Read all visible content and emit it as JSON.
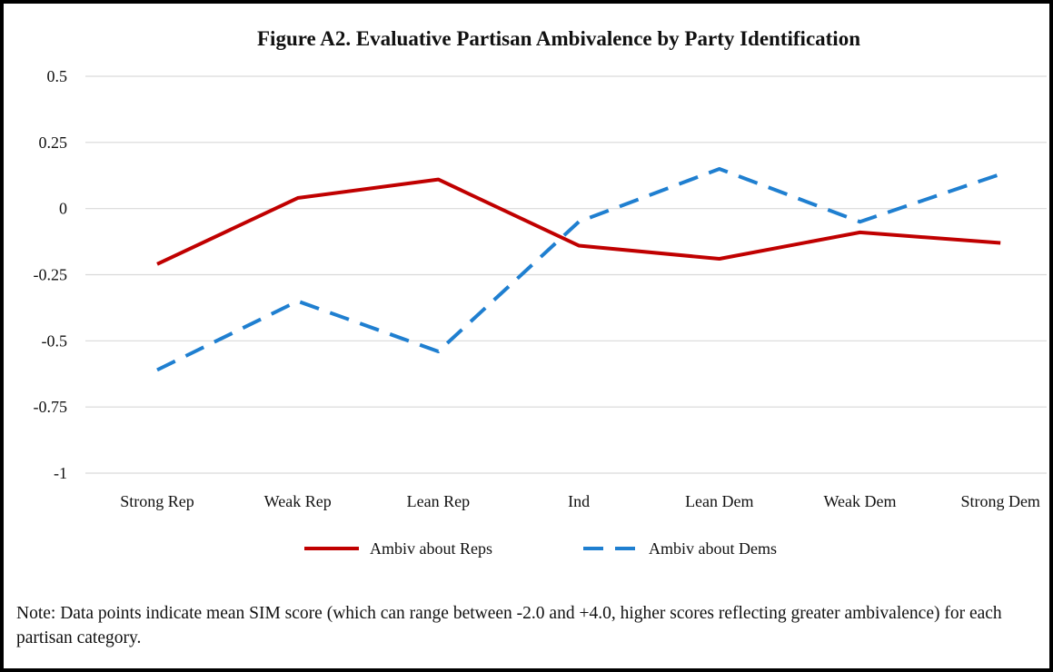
{
  "chart_data": {
    "type": "line",
    "title": "Figure A2. Evaluative Partisan Ambivalence by Party Identification",
    "categories": [
      "Strong Rep",
      "Weak Rep",
      "Lean Rep",
      "Ind",
      "Lean Dem",
      "Weak Dem",
      "Strong Dem"
    ],
    "ytick_labels": [
      "0.5",
      "0.25",
      "0",
      "-0.25",
      "-0.5",
      "-0.75",
      "-1"
    ],
    "yticks": [
      0.5,
      0.25,
      0,
      -0.25,
      -0.5,
      -0.75,
      -1
    ],
    "ylim": [
      -1,
      0.5
    ],
    "xlabel": "",
    "ylabel": "",
    "grid": "horizontal",
    "legend": "bottom",
    "series": [
      {
        "name": "Ambiv about Reps",
        "values": [
          -0.21,
          0.04,
          0.11,
          -0.14,
          -0.19,
          -0.09,
          -0.13
        ],
        "color": "#c00000",
        "style": "solid"
      },
      {
        "name": "Ambiv about Dems",
        "values": [
          -0.61,
          -0.35,
          -0.54,
          -0.05,
          0.15,
          -0.05,
          0.13
        ],
        "color": "#1f7fd0",
        "style": "dashed"
      }
    ]
  },
  "note": "Note: Data points indicate mean SIM score (which can range between -2.0 and +4.0, higher scores reflecting greater ambivalence) for each partisan category."
}
